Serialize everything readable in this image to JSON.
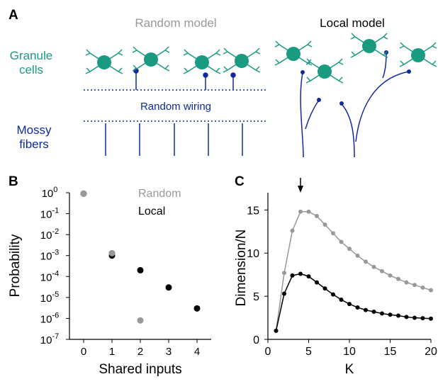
{
  "colors": {
    "granule": "#1a9a80",
    "mossy": "#102a9e",
    "random_series": "#999999",
    "local_series": "#000000",
    "axis": "#000000",
    "random_title": "#999999",
    "local_title": "#000000"
  },
  "panel_a": {
    "letter": "A",
    "random_title": "Random model",
    "local_title": "Local model",
    "granule_label_line1": "Granule",
    "granule_label_line2": "cells",
    "mossy_label_line1": "Mossy",
    "mossy_label_line2": "fibers",
    "wiring_label": "Random wiring"
  },
  "panel_b": {
    "letter": "B",
    "legend_random": "Random",
    "legend_local": "Local",
    "xlabel": "Shared inputs",
    "ylabel": "Probability",
    "ytick_base": "10",
    "ytick_exponents": [
      "0",
      "-1",
      "-2",
      "-3",
      "-4",
      "-5",
      "-6",
      "-7"
    ],
    "xticks": [
      "0",
      "1",
      "2",
      "3",
      "4"
    ]
  },
  "panel_c": {
    "letter": "C",
    "xlabel": "K",
    "ylabel": "Dimension/N",
    "xticks": [
      "0",
      "5",
      "10",
      "15",
      "20"
    ],
    "yticks": [
      "0",
      "5",
      "10",
      "15"
    ],
    "arrow_k": 4
  },
  "chart_data": [
    {
      "type": "scatter",
      "panel": "B",
      "xlabel": "Shared inputs",
      "ylabel": "Probability",
      "yscale": "log",
      "xlim": [
        -0.5,
        4.5
      ],
      "ylim": [
        1e-07,
        1
      ],
      "legend_placement": "top-right",
      "series": [
        {
          "name": "Random",
          "x": [
            0,
            1,
            2
          ],
          "y": [
            0.9,
            0.0013,
            8e-07
          ]
        },
        {
          "name": "Local",
          "x": [
            0,
            1,
            2,
            3,
            4
          ],
          "y": [
            0.9,
            0.001,
            0.0002,
            3e-05,
            3e-06
          ]
        }
      ]
    },
    {
      "type": "line",
      "panel": "C",
      "xlabel": "K",
      "ylabel": "Dimension/N",
      "xlim": [
        0,
        20
      ],
      "ylim": [
        0,
        17
      ],
      "series": [
        {
          "name": "Random",
          "x": [
            1,
            2,
            3,
            4,
            5,
            6,
            7,
            8,
            9,
            10,
            11,
            12,
            13,
            14,
            15,
            16,
            17,
            18,
            19,
            20
          ],
          "y": [
            1.0,
            7.7,
            12.6,
            14.8,
            14.8,
            14.3,
            13.3,
            12.3,
            11.3,
            10.5,
            9.7,
            9.0,
            8.4,
            7.9,
            7.4,
            7.0,
            6.6,
            6.3,
            6.0,
            5.7
          ]
        },
        {
          "name": "Local",
          "x": [
            1,
            2,
            3,
            4,
            5,
            6,
            7,
            8,
            9,
            10,
            11,
            12,
            13,
            14,
            15,
            16,
            17,
            18,
            19,
            20
          ],
          "y": [
            1.0,
            5.3,
            7.4,
            7.6,
            7.3,
            6.6,
            5.9,
            5.2,
            4.6,
            4.1,
            3.7,
            3.4,
            3.2,
            3.0,
            2.85,
            2.75,
            2.6,
            2.5,
            2.45,
            2.4
          ]
        }
      ]
    }
  ]
}
